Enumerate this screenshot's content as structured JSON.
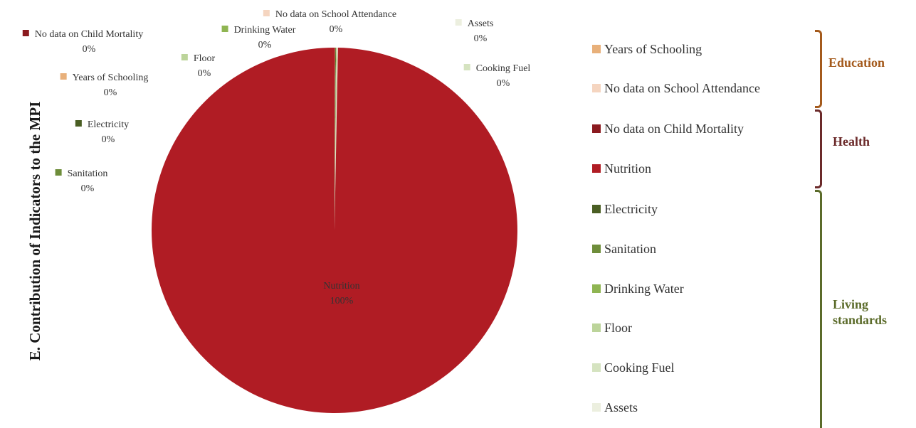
{
  "chart_data": {
    "type": "pie",
    "title": "E. Contribution of Indicators to the MPI",
    "slices": [
      {
        "name": "No data on Child Mortality",
        "value": 0,
        "label": "0%",
        "color": "#8b1a1f"
      },
      {
        "name": "Years of Schooling",
        "value": 0,
        "label": "0%",
        "color": "#e8b07a"
      },
      {
        "name": "Electricity",
        "value": 0,
        "label": "0%",
        "color": "#4a5e23"
      },
      {
        "name": "Sanitation",
        "value": 0,
        "label": "0%",
        "color": "#6e8d3a"
      },
      {
        "name": "Floor",
        "value": 0,
        "label": "0%",
        "color": "#bcd49a"
      },
      {
        "name": "Drinking Water",
        "value": 0,
        "label": "0%",
        "color": "#8fb552"
      },
      {
        "name": "No data on School Attendance",
        "value": 0,
        "label": "0%",
        "color": "#f5d5c0"
      },
      {
        "name": "Assets",
        "value": 0,
        "label": "0%",
        "color": "#ecefdf"
      },
      {
        "name": "Cooking Fuel",
        "value": 0,
        "label": "0%",
        "color": "#d5e3c0"
      },
      {
        "name": "Nutrition",
        "value": 100,
        "label": "100%",
        "color": "#b01c24"
      }
    ],
    "legend": {
      "placement": "right",
      "groups": [
        {
          "name": "Education",
          "color": "#a45a1c",
          "items": [
            {
              "name": "Years of Schooling",
              "color": "#e8b07a"
            },
            {
              "name": "No data on School Attendance",
              "color": "#f5d5c0"
            }
          ]
        },
        {
          "name": "Health",
          "color": "#6b2a2a",
          "items": [
            {
              "name": "No data on Child Mortality",
              "color": "#8b1a1f"
            },
            {
              "name": "Nutrition",
              "color": "#b01c24"
            }
          ]
        },
        {
          "name": "Living standards",
          "label_lines": [
            "Living",
            "standards"
          ],
          "color": "#5b6b2a",
          "items": [
            {
              "name": "Electricity",
              "color": "#4a5e23"
            },
            {
              "name": "Sanitation",
              "color": "#6e8d3a"
            },
            {
              "name": "Drinking Water",
              "color": "#8fb552"
            },
            {
              "name": "Floor",
              "color": "#bcd49a"
            },
            {
              "name": "Cooking Fuel",
              "color": "#d5e3c0"
            },
            {
              "name": "Assets",
              "color": "#ecefdf"
            }
          ]
        }
      ]
    }
  }
}
